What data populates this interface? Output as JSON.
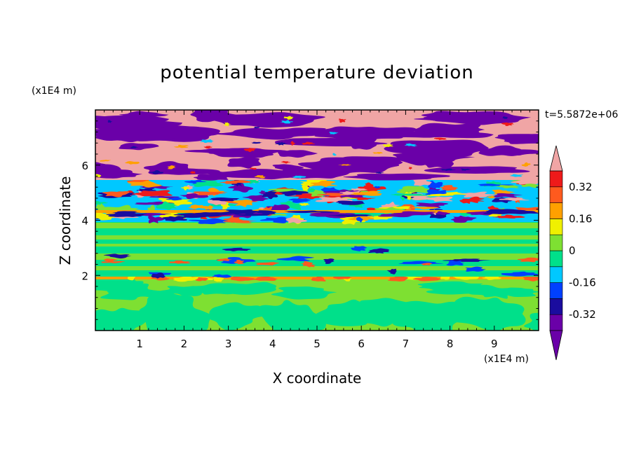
{
  "chart_data": {
    "type": "heatmap",
    "title": "potential temperature deviation",
    "xlabel": "X coordinate",
    "ylabel": "Z coordinate",
    "x_unit": "(x1E4 m)",
    "z_unit": "(x1E4 m)",
    "time_label": "t=5.5872e+06",
    "xlim": [
      0,
      10
    ],
    "ylim": [
      0,
      8
    ],
    "x_ticks": [
      1,
      2,
      3,
      4,
      5,
      6,
      7,
      8,
      9
    ],
    "x_tick_labels": [
      "1",
      "2",
      "3",
      "4",
      "5",
      "6",
      "7",
      "8",
      "9"
    ],
    "y_ticks": [
      2,
      4,
      6
    ],
    "y_tick_labels": [
      "2",
      "4",
      "6"
    ],
    "colorbar": {
      "levels": [
        -0.4,
        -0.32,
        -0.24,
        -0.16,
        -0.08,
        0,
        0.08,
        0.16,
        0.24,
        0.32,
        0.4
      ],
      "labels": [
        "0.32",
        "0.16",
        "0",
        "-0.16",
        "-0.32"
      ],
      "label_values": [
        0.32,
        0.16,
        0,
        -0.16,
        -0.32
      ],
      "colors": [
        "#6a00a8",
        "#1a0c9e",
        "#0040ff",
        "#00c8ff",
        "#00e08a",
        "#7ee032",
        "#f0f000",
        "#ffa000",
        "#ff5a1e",
        "#ee1a1a"
      ],
      "over_color": "#f0a5a5",
      "under_color": "#6a00a8",
      "extend": "both"
    },
    "grid": false
  }
}
